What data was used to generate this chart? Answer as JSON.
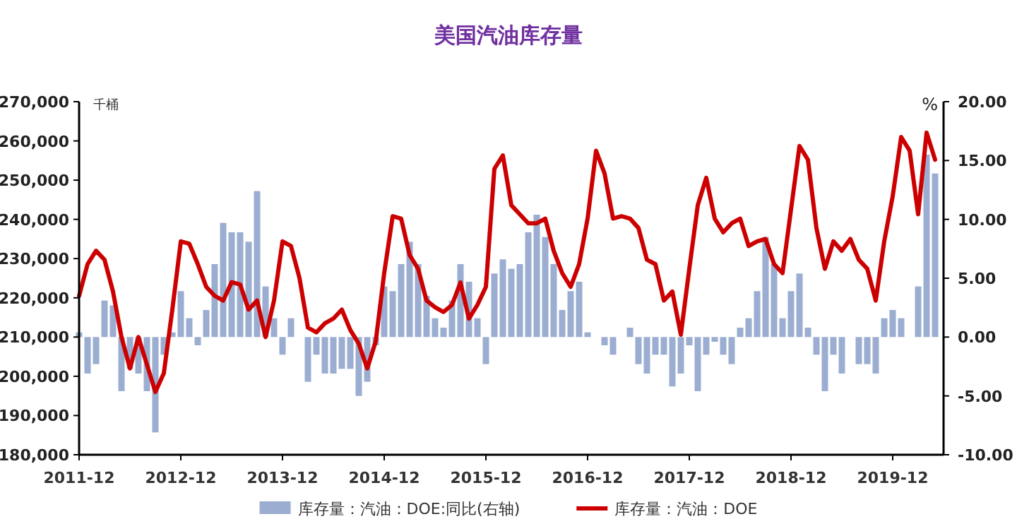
{
  "chart_data": {
    "type": "line",
    "title": "美国汽油库存量",
    "ylabel": "千桶",
    "y2label": "%",
    "x": [
      "2011-12",
      "2012-01",
      "2012-02",
      "2012-03",
      "2012-04",
      "2012-05",
      "2012-06",
      "2012-07",
      "2012-08",
      "2012-09",
      "2012-10",
      "2012-11",
      "2012-12",
      "2013-01",
      "2013-02",
      "2013-03",
      "2013-04",
      "2013-05",
      "2013-06",
      "2013-07",
      "2013-08",
      "2013-09",
      "2013-10",
      "2013-11",
      "2013-12",
      "2014-01",
      "2014-02",
      "2014-03",
      "2014-04",
      "2014-05",
      "2014-06",
      "2014-07",
      "2014-08",
      "2014-09",
      "2014-10",
      "2014-11",
      "2014-12",
      "2015-01",
      "2015-02",
      "2015-03",
      "2015-04",
      "2015-05",
      "2015-06",
      "2015-07",
      "2015-08",
      "2015-09",
      "2015-10",
      "2015-11",
      "2015-12",
      "2016-01",
      "2016-02",
      "2016-03",
      "2016-04",
      "2016-05",
      "2016-06",
      "2016-07",
      "2016-08",
      "2016-09",
      "2016-10",
      "2016-11",
      "2016-12",
      "2017-01",
      "2017-02",
      "2017-03",
      "2017-04",
      "2017-05",
      "2017-06",
      "2017-07",
      "2017-08",
      "2017-09",
      "2017-10",
      "2017-11",
      "2017-12",
      "2018-01",
      "2018-02",
      "2018-03",
      "2018-04",
      "2018-05",
      "2018-06",
      "2018-07",
      "2018-08",
      "2018-09",
      "2018-10",
      "2018-11",
      "2018-12",
      "2019-01",
      "2019-02",
      "2019-03",
      "2019-04",
      "2019-05",
      "2019-06",
      "2019-07",
      "2019-08",
      "2019-09",
      "2019-10",
      "2019-11",
      "2019-12",
      "2020-01",
      "2020-02",
      "2020-03",
      "2020-04",
      "2020-05"
    ],
    "series": [
      {
        "name": "库存量：汽油：DOE:同比(右轴)",
        "type": "bar",
        "axis": "y2",
        "color": "#9badd0",
        "values": [
          0.4,
          -3.1,
          -2.3,
          3.1,
          2.7,
          -4.6,
          -2.7,
          -3.1,
          -4.6,
          -8.1,
          -1.5,
          0.4,
          3.9,
          1.6,
          -0.7,
          2.3,
          6.2,
          9.7,
          8.9,
          8.9,
          8.1,
          12.4,
          4.3,
          1.6,
          -1.5,
          1.6,
          0,
          -3.8,
          -1.5,
          -3.1,
          -3.1,
          -2.7,
          -2.7,
          -5,
          -3.8,
          -0.7,
          4.3,
          3.9,
          6.2,
          8.1,
          6.2,
          3.5,
          1.6,
          0.8,
          3.1,
          6.2,
          4.7,
          1.6,
          -2.3,
          5.4,
          6.6,
          5.8,
          6.2,
          8.9,
          10.4,
          8.5,
          6.2,
          2.3,
          3.9,
          4.7,
          0.4,
          0,
          -0.7,
          -1.5,
          0,
          0.8,
          -2.3,
          -3.1,
          -1.5,
          -1.5,
          -4.2,
          -3.1,
          -0.7,
          -4.6,
          -1.5,
          -0.4,
          -1.5,
          -2.3,
          0.8,
          1.6,
          3.9,
          8.5,
          6.2,
          1.6,
          3.9,
          5.4,
          0.8,
          -1.5,
          -4.6,
          -1.5,
          -3.1,
          0,
          -2.3,
          -2.3,
          -3.1,
          1.6,
          2.3,
          1.6,
          0,
          4.3,
          15.5,
          13.9
        ]
      },
      {
        "name": "库存量：汽油：DOE",
        "color": "#cc0000",
        "values": [
          220500,
          228600,
          232000,
          229700,
          221600,
          210000,
          202000,
          210000,
          203000,
          196000,
          200800,
          217000,
          234400,
          233800,
          228600,
          222800,
          220500,
          219300,
          224000,
          223400,
          217000,
          219300,
          210000,
          219300,
          234400,
          233200,
          225100,
          212400,
          211200,
          213500,
          214700,
          217000,
          211800,
          208300,
          202000,
          208900,
          226300,
          240800,
          240200,
          230900,
          227400,
          219300,
          217600,
          216400,
          218200,
          223900,
          214700,
          218200,
          222800,
          252900,
          256300,
          243600,
          241300,
          239000,
          239000,
          240200,
          232000,
          226300,
          222800,
          228600,
          240200,
          257500,
          251700,
          240200,
          240800,
          240200,
          237800,
          229700,
          228600,
          219300,
          221600,
          210600,
          227400,
          243600,
          250600,
          240200,
          236700,
          239000,
          240200,
          233200,
          234400,
          235000,
          228600,
          226300,
          242500,
          258700,
          255200,
          237800,
          227400,
          234400,
          232000,
          235000,
          229700,
          227400,
          219300,
          234400,
          245900,
          261000,
          257500,
          241300,
          262100,
          255200
        ]
      }
    ],
    "xlim": [
      "2011-12",
      "2020-06"
    ],
    "xticks": [
      "2011-12",
      "2012-12",
      "2013-12",
      "2014-12",
      "2015-12",
      "2016-12",
      "2017-12",
      "2018-12",
      "2019-12"
    ],
    "ylim": [
      180000,
      270000
    ],
    "yticks": [
      {
        "value": 180000,
        "label": "180,000"
      },
      {
        "value": 190000,
        "label": "190,000"
      },
      {
        "value": 200000,
        "label": "200,000"
      },
      {
        "value": 210000,
        "label": "210,000"
      },
      {
        "value": 220000,
        "label": "220,000"
      },
      {
        "value": 230000,
        "label": "230,000"
      },
      {
        "value": 240000,
        "label": "240,000"
      },
      {
        "value": 250000,
        "label": "250,000"
      },
      {
        "value": 260000,
        "label": "260,000"
      },
      {
        "value": 270000,
        "label": "270,000"
      }
    ],
    "y2lim": [
      -10,
      20
    ],
    "y2ticks": [
      {
        "value": -10,
        "label": "-10.00"
      },
      {
        "value": -5,
        "label": "-5.00"
      },
      {
        "value": 0,
        "label": "0.00"
      },
      {
        "value": 5,
        "label": "5.00"
      },
      {
        "value": 10,
        "label": "10.00"
      },
      {
        "value": 15,
        "label": "15.00"
      },
      {
        "value": 20,
        "label": "20.00"
      }
    ],
    "legend": "bottom",
    "grid": false
  }
}
